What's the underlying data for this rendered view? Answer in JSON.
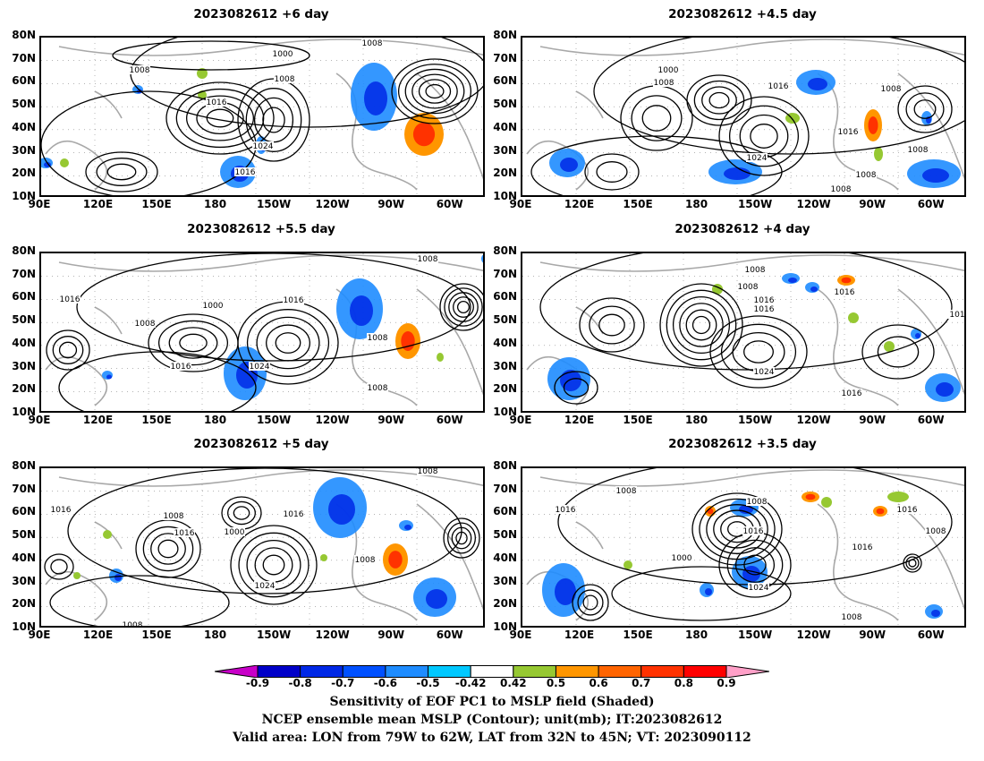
{
  "panels": [
    {
      "title": "2023082612 +6 day",
      "contour_labels": [
        "1008",
        "1000",
        "1008",
        "1016",
        "1008",
        "1024",
        "1016"
      ]
    },
    {
      "title": "2023082612 +4.5 day",
      "contour_labels": [
        "1000",
        "1008",
        "1016",
        "1008",
        "1016",
        "1024",
        "1008",
        "1008",
        "1008"
      ]
    },
    {
      "title": "2023082612 +5.5 day",
      "contour_labels": [
        "1008",
        "1016",
        "1000",
        "1016",
        "1008",
        "1016",
        "1024",
        "1008",
        "1008"
      ]
    },
    {
      "title": "2023082612 +4 day",
      "contour_labels": [
        "1008",
        "1016",
        "1008",
        "1016",
        "1016",
        "1024",
        "1016",
        "101"
      ]
    },
    {
      "title": "2023082612 +5 day",
      "contour_labels": [
        "1008",
        "1016",
        "1008",
        "1016",
        "1000",
        "1016",
        "1024",
        "1008",
        "1008"
      ]
    },
    {
      "title": "2023082612 +3.5 day",
      "contour_labels": [
        "1008",
        "1016",
        "1008",
        "1016",
        "1016",
        "1000",
        "1024",
        "1008",
        "1008",
        "1016"
      ]
    }
  ],
  "lat_ticks": [
    "80N",
    "70N",
    "60N",
    "50N",
    "40N",
    "30N",
    "20N",
    "10N"
  ],
  "lon_ticks": [
    "90E",
    "120E",
    "150E",
    "180",
    "150W",
    "120W",
    "90W",
    "60W"
  ],
  "colorbar": {
    "ticks": [
      "-0.9",
      "-0.8",
      "-0.7",
      "-0.6",
      "-0.5",
      "-0.42",
      "0.42",
      "0.5",
      "0.6",
      "0.7",
      "0.8",
      "0.9"
    ],
    "colors": [
      "#c800c8",
      "#0000c8",
      "#0028e6",
      "#0050ff",
      "#1e8cff",
      "#00c8ff",
      "#ffffff",
      "#96c832",
      "#ff9600",
      "#ff6400",
      "#ff3200",
      "#ff0000",
      "#ffa0c8"
    ]
  },
  "caption": {
    "line1": "Sensitivity of EOF PC1 to MSLP field (Shaded)",
    "line2": "NCEP ensemble mean MSLP (Contour); unit(mb); IT:2023082612",
    "line3": "Valid area: LON from 79W to 62W, LAT from 32N to 45N; VT: 2023090112"
  }
}
